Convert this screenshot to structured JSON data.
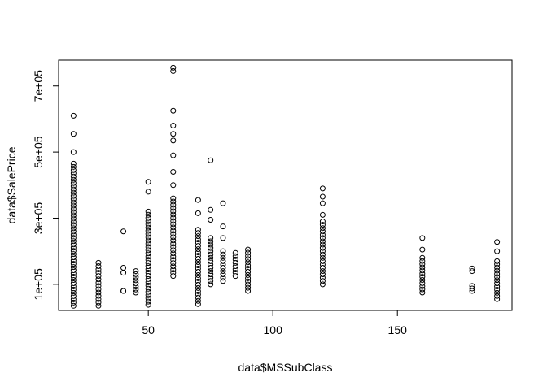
{
  "chart_data": {
    "type": "scatter",
    "title": "",
    "xlabel": "data$MSSubClass",
    "ylabel": "data$SalePrice",
    "xlim": [
      14,
      196
    ],
    "ylim": [
      21000,
      778000
    ],
    "x_ticks": [
      50,
      100,
      150
    ],
    "x_tick_labels": [
      "50",
      "100",
      "150"
    ],
    "y_ticks": [
      100000,
      300000,
      500000,
      700000
    ],
    "y_tick_labels": [
      "1e+05",
      "3e+05",
      "5e+05",
      "7e+05"
    ],
    "grid": false,
    "legend": "none",
    "point_color": "#000000",
    "columns": [
      {
        "x": 20,
        "min": 35000,
        "max": 465000,
        "extra": [
          500000,
          555000,
          610000
        ]
      },
      {
        "x": 30,
        "min": 35000,
        "max": 165000,
        "extra": []
      },
      {
        "x": 40,
        "min": 80000,
        "max": 80000,
        "extra": [
          135000,
          150000,
          260000
        ]
      },
      {
        "x": 45,
        "min": 75000,
        "max": 140000,
        "extra": []
      },
      {
        "x": 50,
        "min": 38000,
        "max": 320000,
        "extra": [
          380000,
          410000
        ]
      },
      {
        "x": 60,
        "min": 125000,
        "max": 360000,
        "extra": [
          400000,
          440000,
          490000,
          535000,
          555000,
          580000,
          625000,
          745000,
          755000
        ]
      },
      {
        "x": 70,
        "min": 40000,
        "max": 265000,
        "extra": [
          315000,
          355000
        ]
      },
      {
        "x": 75,
        "min": 100000,
        "max": 240000,
        "extra": [
          295000,
          325000,
          475000
        ]
      },
      {
        "x": 80,
        "min": 110000,
        "max": 200000,
        "extra": [
          240000,
          275000,
          345000
        ]
      },
      {
        "x": 85,
        "min": 125000,
        "max": 195000,
        "extra": []
      },
      {
        "x": 90,
        "min": 80000,
        "max": 205000,
        "extra": []
      },
      {
        "x": 120,
        "min": 100000,
        "max": 290000,
        "extra": [
          310000,
          345000,
          365000,
          390000
        ]
      },
      {
        "x": 160,
        "min": 75000,
        "max": 180000,
        "extra": [
          205000,
          240000
        ]
      },
      {
        "x": 180,
        "min": 80000,
        "max": 95000,
        "extra": [
          140000,
          148000
        ]
      },
      {
        "x": 190,
        "min": 55000,
        "max": 170000,
        "extra": [
          200000,
          228000
        ]
      }
    ]
  }
}
